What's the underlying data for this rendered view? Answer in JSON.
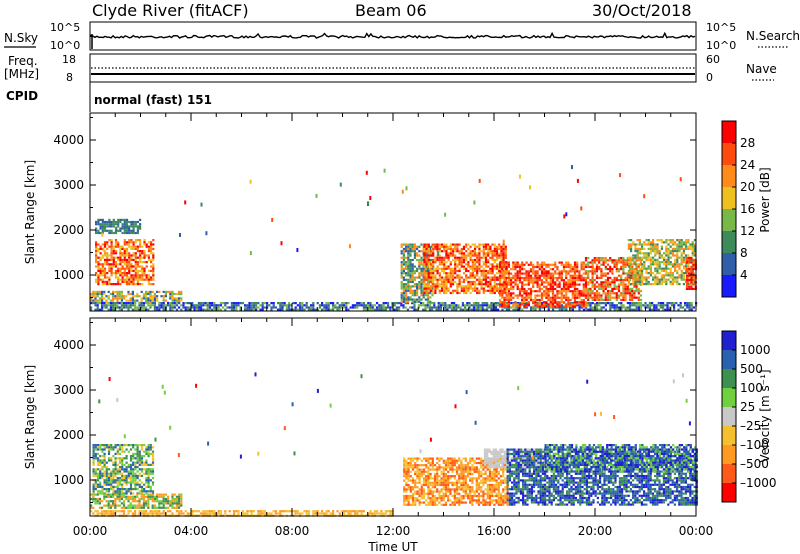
{
  "header": {
    "site": "Clyde River (fitACF)",
    "beam": "Beam 06",
    "date": "30/Oct/2018"
  },
  "top_panels": {
    "nsky_label": "N.Sky",
    "nsearch_label": "N.Search",
    "nsky_ticks": [
      "10^5",
      "10^0"
    ],
    "nsearch_ticks": [
      "10^5",
      "10^0"
    ],
    "freq_label_1": "Freq.",
    "freq_label_2": "[MHz]",
    "freq_ticks": [
      "18",
      "8"
    ],
    "nave_label": "Nave",
    "nave_ticks": [
      "60",
      "0"
    ],
    "cpid_label": "CPID",
    "cpid_value": "normal (fast) 151"
  },
  "x_axis": {
    "label": "Time UT",
    "ticks": [
      "00:00",
      "04:00",
      "08:00",
      "12:00",
      "16:00",
      "20:00",
      "00:00"
    ]
  },
  "colors": {
    "power": [
      "#1a1aff",
      "#2e5fa8",
      "#3e8a5a",
      "#78b848",
      "#f0c020",
      "#ff8c1a",
      "#ff4a10",
      "#ff0000"
    ],
    "velocity": [
      "#ff0000",
      "#ff5a1a",
      "#ff9a20",
      "#f5c030",
      "#c8c8c8",
      "#70d040",
      "#3e9050",
      "#2a60b0",
      "#2020d0"
    ]
  },
  "chart_data": [
    {
      "type": "heatmap",
      "name": "power",
      "ylabel": "Slant Range [km]",
      "yticks": [
        "4000",
        "3000",
        "2000",
        "1000"
      ],
      "ylim": [
        200,
        4600
      ],
      "xlim_hours": [
        0,
        24
      ],
      "colorbar_label": "Power [dB]",
      "colorbar_ticks": [
        "28",
        "24",
        "20",
        "16",
        "12",
        "8",
        "4"
      ],
      "regions": [
        {
          "t": [
            0.2,
            2.5
          ],
          "r": [
            800,
            1800
          ],
          "levels": [
            5,
            6,
            7,
            4
          ]
        },
        {
          "t": [
            0.2,
            2.0
          ],
          "r": [
            1950,
            2250
          ],
          "levels": [
            1,
            2
          ]
        },
        {
          "t": [
            0.0,
            3.6
          ],
          "r": [
            380,
            650
          ],
          "levels": [
            4,
            5,
            3,
            1
          ]
        },
        {
          "t": [
            0.0,
            24.0
          ],
          "r": [
            220,
            400
          ],
          "levels": [
            0,
            1,
            2,
            3
          ]
        },
        {
          "t": [
            12.3,
            13.6
          ],
          "r": [
            400,
            1700
          ],
          "levels": [
            1,
            2,
            3,
            5
          ]
        },
        {
          "t": [
            13.2,
            16.5
          ],
          "r": [
            600,
            1700
          ],
          "levels": [
            6,
            7,
            5,
            4
          ]
        },
        {
          "t": [
            16.2,
            19.6
          ],
          "r": [
            300,
            1300
          ],
          "levels": [
            7,
            6,
            5
          ]
        },
        {
          "t": [
            19.6,
            21.8
          ],
          "r": [
            450,
            1400
          ],
          "levels": [
            6,
            7,
            5,
            3
          ]
        },
        {
          "t": [
            21.3,
            24.0
          ],
          "r": [
            800,
            1800
          ],
          "levels": [
            3,
            4,
            5,
            2
          ]
        },
        {
          "t": [
            23.6,
            24.0
          ],
          "r": [
            700,
            1400
          ],
          "levels": [
            6,
            7
          ]
        }
      ]
    },
    {
      "type": "heatmap",
      "name": "velocity",
      "ylabel": "Slant Range [km]",
      "yticks": [
        "4000",
        "3000",
        "2000",
        "1000"
      ],
      "ylim": [
        200,
        4600
      ],
      "xlim_hours": [
        0,
        24
      ],
      "colorbar_label": "Velocity [m s⁻¹]",
      "colorbar_ticks": [
        "1000",
        "500",
        "100",
        "25",
        "–25",
        "–100",
        "–500",
        "–1000"
      ],
      "regions": [
        {
          "t": [
            0.1,
            2.5
          ],
          "r": [
            700,
            1800
          ],
          "levels": [
            5,
            6,
            7,
            3
          ]
        },
        {
          "t": [
            0.0,
            3.6
          ],
          "r": [
            380,
            700
          ],
          "levels": [
            6,
            5,
            2
          ]
        },
        {
          "t": [
            0.0,
            12.0
          ],
          "r": [
            220,
            330
          ],
          "levels": [
            3,
            2
          ]
        },
        {
          "t": [
            12.4,
            16.5
          ],
          "r": [
            450,
            1500
          ],
          "levels": [
            1,
            2,
            3
          ]
        },
        {
          "t": [
            15.6,
            18.0
          ],
          "r": [
            1300,
            1700
          ],
          "levels": [
            4
          ]
        },
        {
          "t": [
            16.5,
            24.0
          ],
          "r": [
            450,
            1700
          ],
          "levels": [
            8,
            7,
            6
          ]
        },
        {
          "t": [
            18.0,
            24.0
          ],
          "r": [
            1200,
            1800
          ],
          "levels": [
            8,
            7,
            5
          ]
        }
      ]
    }
  ]
}
